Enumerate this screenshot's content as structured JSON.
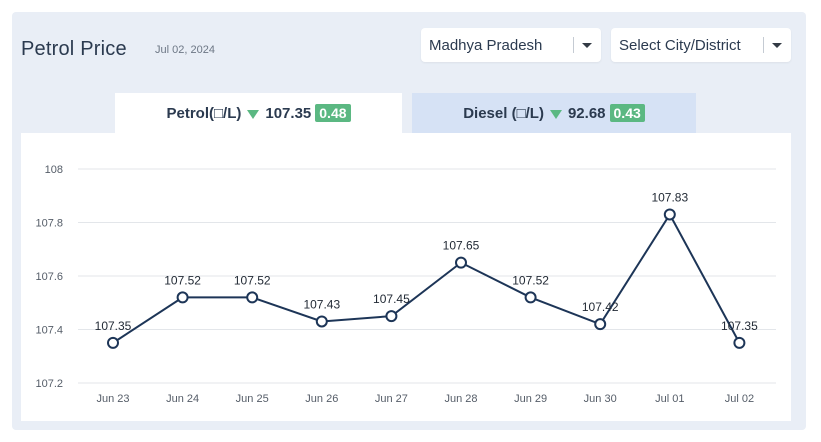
{
  "header": {
    "title": "Petrol Price",
    "date": "Jul 02, 2024"
  },
  "selects": {
    "state": "Madhya Pradesh",
    "city": "Select City/District"
  },
  "tabs": {
    "petrol": {
      "label": "Petrol(□/L)",
      "price": "107.35",
      "change": "0.48"
    },
    "diesel": {
      "label": "Diesel (□/L)",
      "price": "92.68",
      "change": "0.43"
    }
  },
  "colors": {
    "line": "#1d3557",
    "accent_green": "#5bb882",
    "active_tab": "#ffffff",
    "inactive_tab": "#d6e2f5"
  },
  "chart_data": {
    "type": "line",
    "categories": [
      "Jun 23",
      "Jun 24",
      "Jun 25",
      "Jun 26",
      "Jun 27",
      "Jun 28",
      "Jun 29",
      "Jun 30",
      "Jul 01",
      "Jul 02"
    ],
    "values": [
      107.35,
      107.52,
      107.52,
      107.43,
      107.45,
      107.65,
      107.52,
      107.42,
      107.83,
      107.35
    ],
    "data_labels": [
      "107.35",
      "107.52",
      "107.52",
      "107.43",
      "107.45",
      "107.65",
      "107.52",
      "107.42",
      "107.83",
      "107.35"
    ],
    "y_ticks": [
      "107.2",
      "107.4",
      "107.6",
      "107.8",
      "108"
    ],
    "ylim": [
      107.2,
      108
    ],
    "grid": true
  }
}
